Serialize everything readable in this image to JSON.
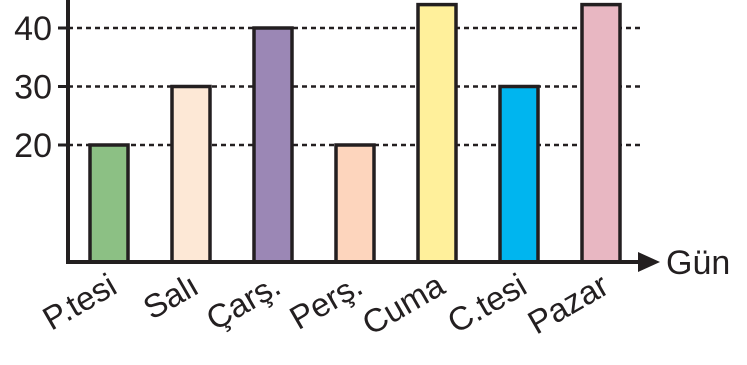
{
  "chart_data": {
    "type": "bar",
    "categories": [
      "P.tesi",
      "Salı",
      "Çarş.",
      "Perş.",
      "Cuma",
      "C.tesi",
      "Pazar"
    ],
    "values": [
      20,
      30,
      40,
      20,
      44,
      30,
      44
    ],
    "colors": [
      "#8cc084",
      "#fde8d6",
      "#9b87b5",
      "#fdd5bd",
      "#fff09b",
      "#00b5ef",
      "#e8b7c2"
    ],
    "yticks": [
      20,
      30,
      40
    ],
    "ylim": [
      0,
      44
    ],
    "xlabel": "Gün",
    "ylabel": "",
    "grid": "dashed horizontal at ticks",
    "note": "Cuma and Pazar bars extend past the top of the visible chart"
  }
}
